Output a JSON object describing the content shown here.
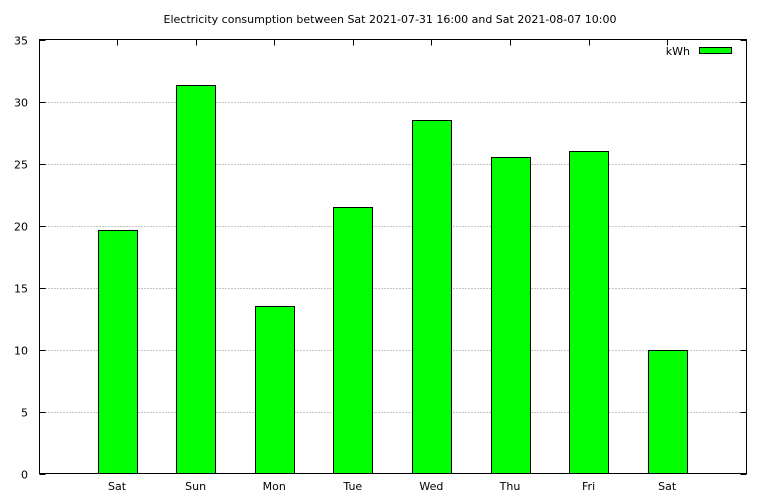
{
  "chart_data": {
    "type": "bar",
    "title": "Electricity consumption between Sat 2021-07-31 16:00 and Sat 2021-08-07 10:00",
    "xlabel": "",
    "ylabel": "",
    "categories": [
      "Sat",
      "Sun",
      "Mon",
      "Tue",
      "Wed",
      "Thu",
      "Fri",
      "Sat"
    ],
    "series": [
      {
        "name": "kWh",
        "values": [
          19.6,
          31.3,
          13.5,
          21.5,
          28.5,
          25.5,
          26.0,
          10.0
        ]
      }
    ],
    "ylim": [
      0,
      35
    ],
    "yticks": [
      0,
      5,
      10,
      15,
      20,
      25,
      30,
      35
    ],
    "grid": true,
    "legend_position": "top-right",
    "colors": {
      "bar_fill": "#00ff00",
      "bar_stroke": "#000000",
      "grid": "#888888"
    }
  }
}
